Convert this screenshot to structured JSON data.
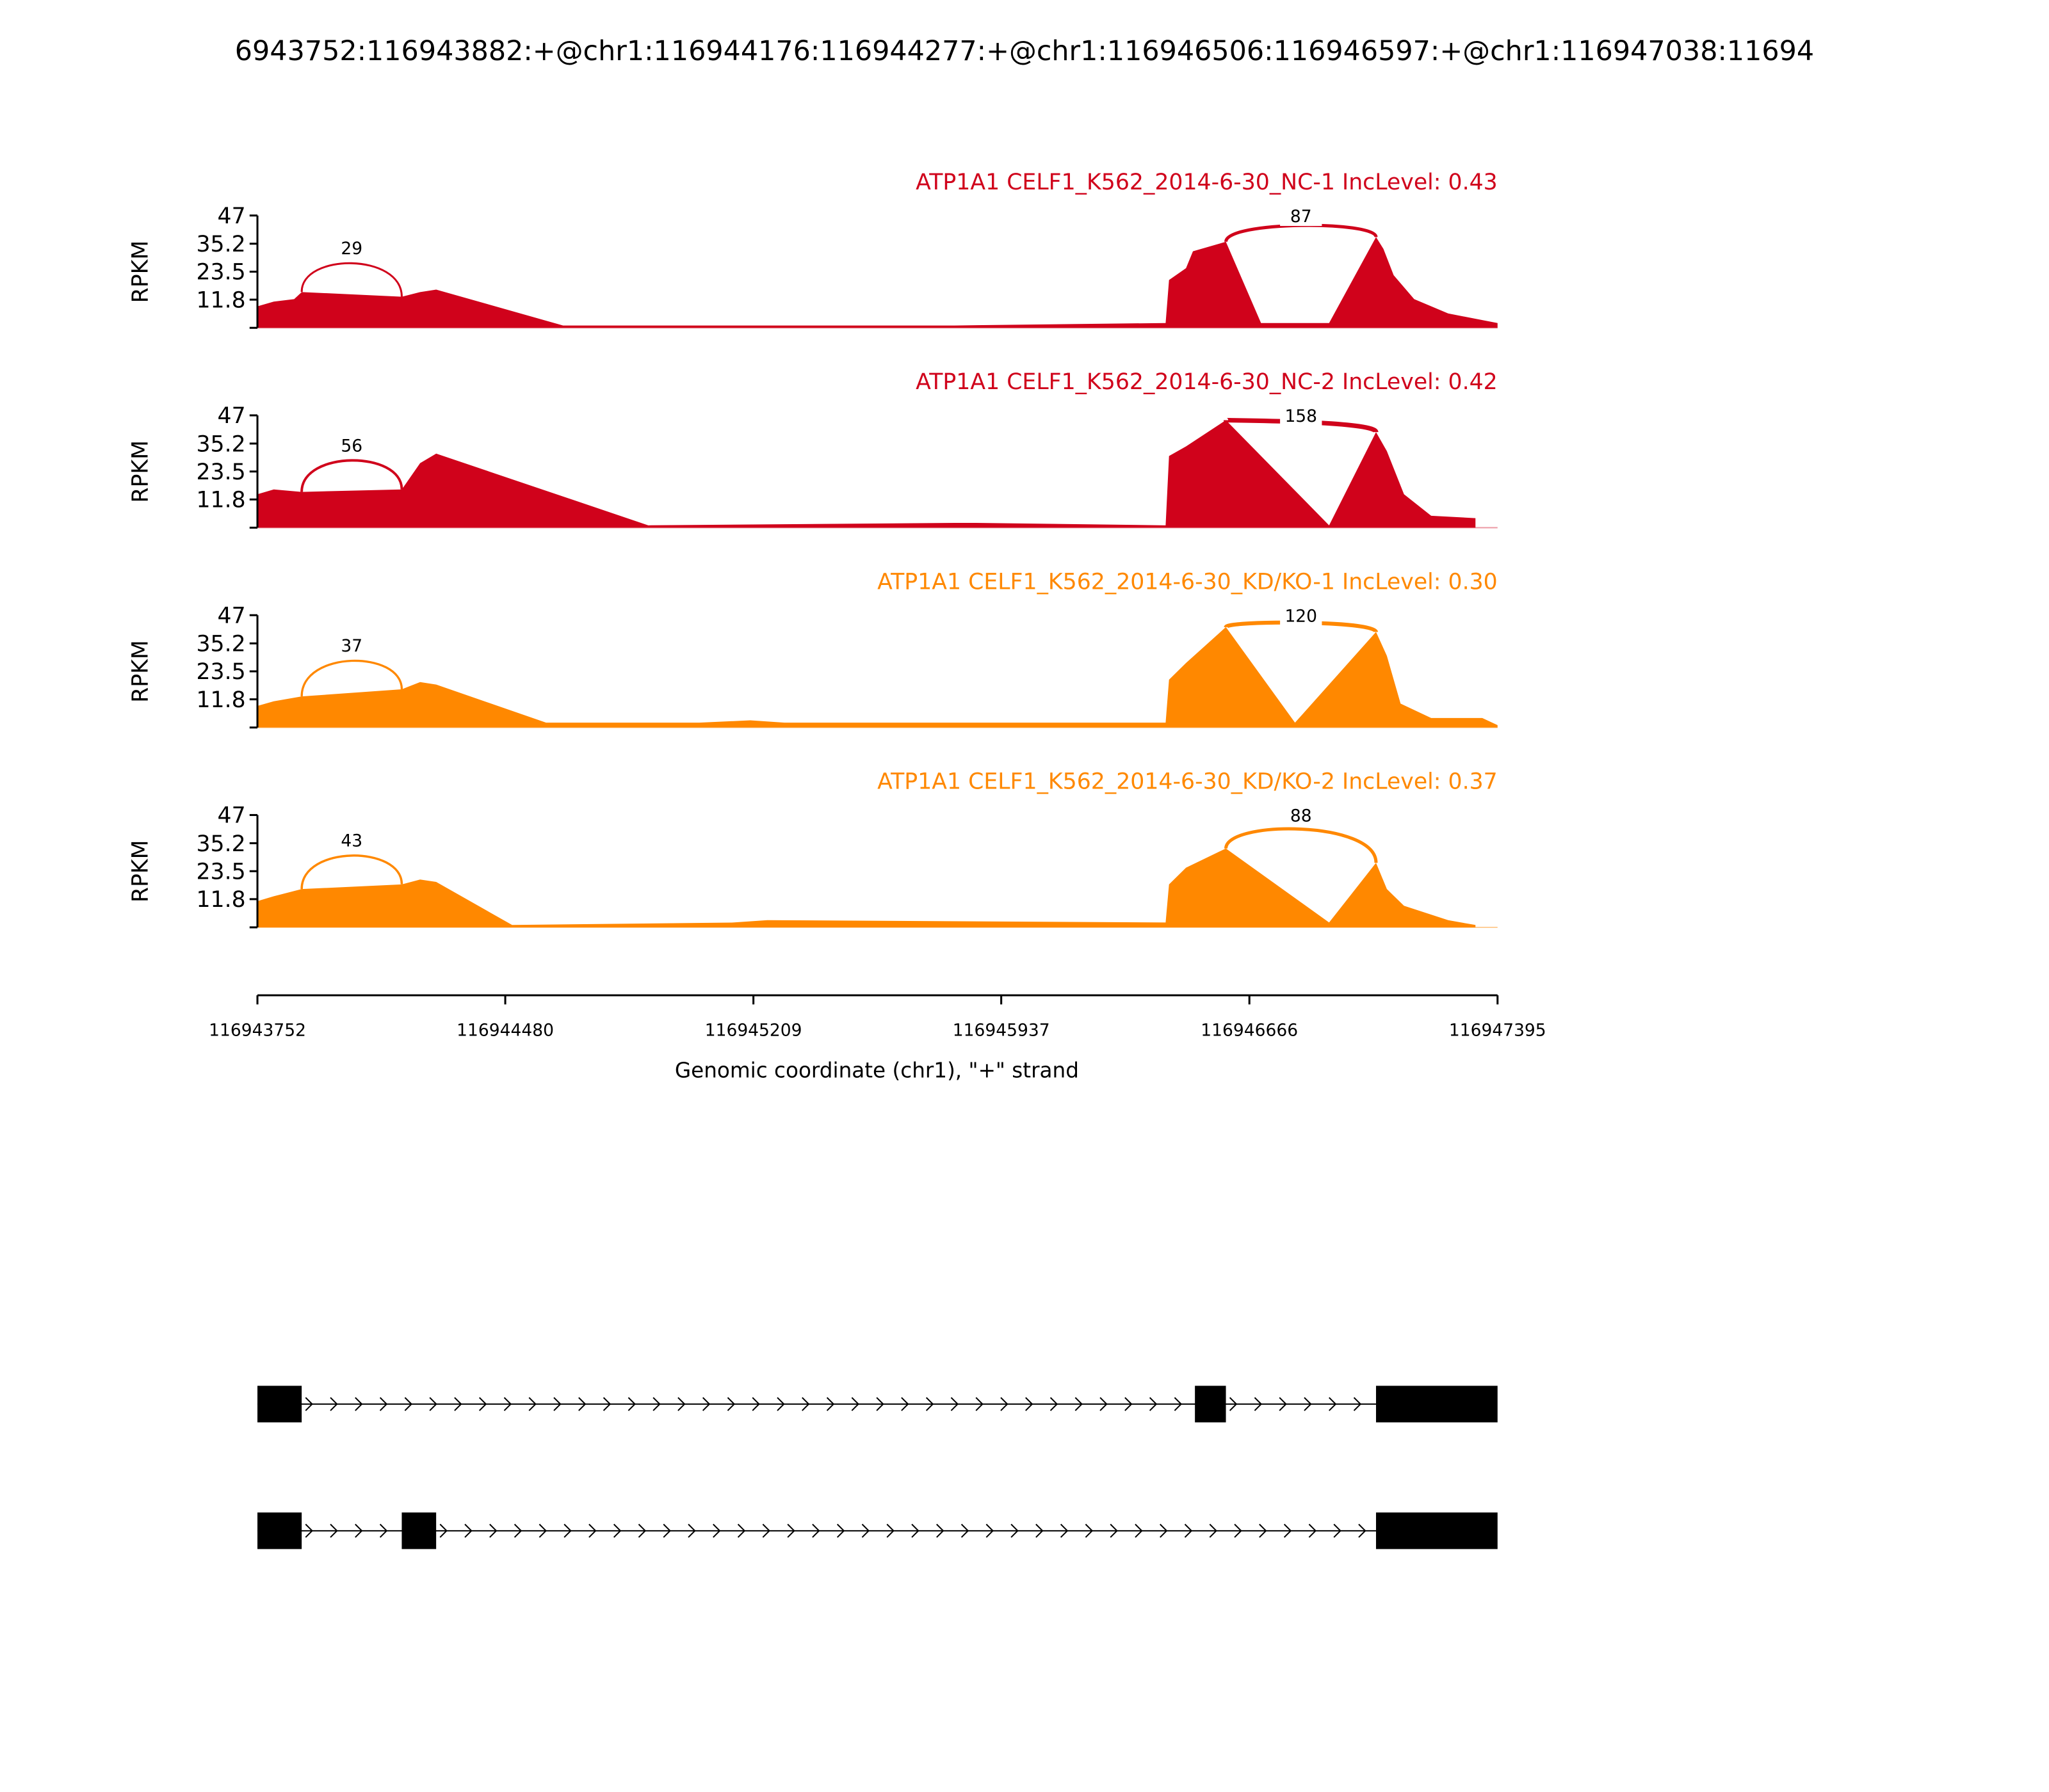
{
  "chart_data": {
    "type": "area",
    "title": "6943752:116943882:+@chr1:116944176:116944277:+@chr1:116946506:116946597:+@chr1:116947038:11694",
    "xlabel": "Genomic coordinate (chr1), \"+\" strand",
    "ylabel": "RPKM",
    "xlim": [
      116943752,
      116947395
    ],
    "ylim": [
      0,
      47
    ],
    "xticks": [
      "116943752",
      "116944480",
      "116945209",
      "116945937",
      "116946666",
      "116947395"
    ],
    "yticks": [
      "11.8",
      "23.5",
      "35.2",
      "47"
    ],
    "colors": {
      "nc": "#d0021b",
      "kd": "#ff8800",
      "gene": "#000000"
    },
    "exons": {
      "e1": [
        116943752,
        116943882
      ],
      "e2": [
        116944176,
        116944277
      ],
      "e3": [
        116946506,
        116946597
      ],
      "e4": [
        116947038,
        116947395
      ]
    },
    "series": [
      {
        "name": "ATP1A1 CELF1_K562_2014-6-30_NC-1 IncLevel: 0.43",
        "color_key": "nc",
        "junctions": [
          {
            "from": "e1",
            "to": "e2",
            "count": "29"
          },
          {
            "from": "e3",
            "to": "e4",
            "count": "87"
          }
        ],
        "coverage": [
          [
            116943752,
            9
          ],
          [
            116943800,
            11
          ],
          [
            116943860,
            12
          ],
          [
            116943882,
            15
          ],
          [
            116944176,
            13
          ],
          [
            116944230,
            15
          ],
          [
            116944277,
            16
          ],
          [
            116944650,
            1
          ],
          [
            116944700,
            1
          ],
          [
            116945040,
            1
          ],
          [
            116945100,
            1
          ],
          [
            116945800,
            1
          ],
          [
            116946420,
            2
          ],
          [
            116946430,
            20
          ],
          [
            116946480,
            25
          ],
          [
            116946500,
            32
          ],
          [
            116946597,
            36
          ],
          [
            116946700,
            2
          ],
          [
            116946900,
            2
          ],
          [
            116947038,
            38
          ],
          [
            116947060,
            33
          ],
          [
            116947090,
            22
          ],
          [
            116947150,
            12
          ],
          [
            116947250,
            6
          ],
          [
            116947395,
            2
          ]
        ]
      },
      {
        "name": "ATP1A1 CELF1_K562_2014-6-30_NC-2 IncLevel: 0.42",
        "color_key": "nc",
        "junctions": [
          {
            "from": "e1",
            "to": "e2",
            "count": "56"
          },
          {
            "from": "e3",
            "to": "e4",
            "count": "158"
          }
        ],
        "coverage": [
          [
            116943752,
            14
          ],
          [
            116943800,
            16
          ],
          [
            116943882,
            15
          ],
          [
            116944176,
            16
          ],
          [
            116944230,
            27
          ],
          [
            116944277,
            31
          ],
          [
            116944900,
            1
          ],
          [
            116945800,
            2
          ],
          [
            116945850,
            2
          ],
          [
            116946420,
            1
          ],
          [
            116946430,
            30
          ],
          [
            116946480,
            34
          ],
          [
            116946597,
            45
          ],
          [
            116946900,
            1
          ],
          [
            116947038,
            40
          ],
          [
            116947070,
            32
          ],
          [
            116947120,
            14
          ],
          [
            116947200,
            5
          ],
          [
            116947330,
            4
          ],
          [
            116947330,
            0
          ]
        ]
      },
      {
        "name": "ATP1A1 CELF1_K562_2014-6-30_KD/KO-1 IncLevel: 0.30",
        "color_key": "kd",
        "junctions": [
          {
            "from": "e1",
            "to": "e2",
            "count": "37"
          },
          {
            "from": "e3",
            "to": "e4",
            "count": "120"
          }
        ],
        "coverage": [
          [
            116943752,
            9
          ],
          [
            116943800,
            11
          ],
          [
            116943882,
            13
          ],
          [
            116944176,
            16
          ],
          [
            116944230,
            19
          ],
          [
            116944277,
            18
          ],
          [
            116944600,
            2
          ],
          [
            116945050,
            2
          ],
          [
            116945200,
            3
          ],
          [
            116945300,
            2
          ],
          [
            116946420,
            2
          ],
          [
            116946430,
            20
          ],
          [
            116946480,
            27
          ],
          [
            116946597,
            42
          ],
          [
            116946800,
            2
          ],
          [
            116947038,
            40
          ],
          [
            116947070,
            30
          ],
          [
            116947110,
            10
          ],
          [
            116947200,
            4
          ],
          [
            116947350,
            4
          ],
          [
            116947395,
            1
          ]
        ]
      },
      {
        "name": "ATP1A1 CELF1_K562_2014-6-30_KD/KO-2 IncLevel: 0.37",
        "color_key": "kd",
        "junctions": [
          {
            "from": "e1",
            "to": "e2",
            "count": "43"
          },
          {
            "from": "e3",
            "to": "e4",
            "count": "88"
          }
        ],
        "coverage": [
          [
            116943752,
            11
          ],
          [
            116943800,
            13
          ],
          [
            116943882,
            16
          ],
          [
            116944176,
            18
          ],
          [
            116944230,
            20
          ],
          [
            116944277,
            19
          ],
          [
            116944500,
            1
          ],
          [
            116945150,
            2
          ],
          [
            116945250,
            3
          ],
          [
            116946420,
            2
          ],
          [
            116946430,
            18
          ],
          [
            116946480,
            25
          ],
          [
            116946597,
            33
          ],
          [
            116946900,
            2
          ],
          [
            116947038,
            27
          ],
          [
            116947070,
            16
          ],
          [
            116947120,
            9
          ],
          [
            116947250,
            3
          ],
          [
            116947330,
            1
          ],
          [
            116947330,
            0
          ]
        ]
      }
    ],
    "gene_models": [
      {
        "exons": [
          "e1",
          "e3",
          "e4"
        ]
      },
      {
        "exons": [
          "e1",
          "e2",
          "e4"
        ]
      }
    ]
  }
}
